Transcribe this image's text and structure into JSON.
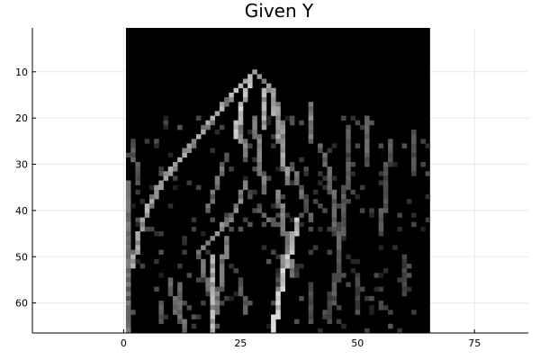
{
  "chart_data": {
    "type": "heatmap",
    "title": "Given Y",
    "xlabel": "",
    "ylabel": "",
    "xlim": [
      -19.5,
      86.5
    ],
    "ylim": [
      66.5,
      0.5
    ],
    "y_reversed": true,
    "colormap": "grayscale",
    "grid": true,
    "legend": "none",
    "xticks": [
      0,
      25,
      50,
      75
    ],
    "yticks": [
      10,
      20,
      30,
      40,
      50,
      60
    ],
    "image_extent": {
      "x": [
        1,
        65
      ],
      "y": [
        1,
        66
      ]
    },
    "image_size": {
      "cols": 65,
      "rows": 66
    },
    "strokes": [
      {
        "pts": [
          [
            28,
            10
          ],
          [
            24,
            14
          ],
          [
            20,
            19
          ],
          [
            16,
            24
          ],
          [
            12,
            29
          ],
          [
            8,
            34
          ],
          [
            5,
            40
          ],
          [
            3,
            46
          ],
          [
            2,
            52
          ]
        ],
        "v": 0.75
      },
      {
        "pts": [
          [
            28,
            10
          ],
          [
            31,
            13
          ],
          [
            33,
            18
          ],
          [
            34,
            24
          ],
          [
            34,
            30
          ]
        ],
        "v": 0.65
      },
      {
        "pts": [
          [
            27,
            12
          ],
          [
            25,
            18
          ],
          [
            24,
            24
          ]
        ],
        "v": 0.85
      },
      {
        "pts": [
          [
            30,
            14
          ],
          [
            30,
            22
          ]
        ],
        "v": 0.8
      },
      {
        "pts": [
          [
            32,
            16
          ],
          [
            33,
            22
          ],
          [
            34,
            28
          ],
          [
            35,
            34
          ]
        ],
        "v": 0.7
      },
      {
        "pts": [
          [
            28,
            20
          ],
          [
            29,
            28
          ],
          [
            30,
            36
          ]
        ],
        "v": 0.55
      },
      {
        "pts": [
          [
            25,
            22
          ],
          [
            26,
            28
          ]
        ],
        "v": 0.6
      },
      {
        "pts": [
          [
            22,
            28
          ],
          [
            20,
            34
          ],
          [
            18,
            40
          ]
        ],
        "v": 0.5
      },
      {
        "pts": [
          [
            26,
            34
          ],
          [
            24,
            40
          ],
          [
            20,
            45
          ],
          [
            16,
            49
          ]
        ],
        "v": 0.6
      },
      {
        "pts": [
          [
            33,
            36
          ],
          [
            34,
            42
          ],
          [
            35,
            48
          ],
          [
            36,
            54
          ]
        ],
        "v": 0.55
      },
      {
        "pts": [
          [
            36,
            30
          ],
          [
            38,
            36
          ],
          [
            40,
            42
          ]
        ],
        "v": 0.5
      },
      {
        "pts": [
          [
            42,
            26
          ],
          [
            44,
            32
          ],
          [
            45,
            40
          ],
          [
            46,
            48
          ]
        ],
        "v": 0.45
      },
      {
        "pts": [
          [
            40,
            17
          ],
          [
            40,
            25
          ]
        ],
        "v": 0.6
      },
      {
        "pts": [
          [
            48,
            22
          ],
          [
            48,
            30
          ],
          [
            47,
            40
          ],
          [
            46,
            50
          ],
          [
            45,
            60
          ]
        ],
        "v": 0.4
      },
      {
        "pts": [
          [
            52,
            20
          ],
          [
            52,
            30
          ]
        ],
        "v": 0.45
      },
      {
        "pts": [
          [
            57,
            25
          ],
          [
            56,
            35
          ],
          [
            55,
            45
          ]
        ],
        "v": 0.4
      },
      {
        "pts": [
          [
            62,
            23
          ],
          [
            62,
            32
          ]
        ],
        "v": 0.4
      },
      {
        "pts": [
          [
            37,
            42
          ],
          [
            36,
            48
          ],
          [
            34,
            54
          ],
          [
            33,
            60
          ],
          [
            32,
            66
          ]
        ],
        "v": 0.9
      },
      {
        "pts": [
          [
            34,
            50
          ],
          [
            34,
            56
          ]
        ],
        "v": 0.6
      },
      {
        "pts": [
          [
            19,
            50
          ],
          [
            19,
            56
          ],
          [
            19,
            62
          ],
          [
            19,
            66
          ]
        ],
        "v": 0.8
      },
      {
        "pts": [
          [
            22,
            46
          ],
          [
            21,
            54
          ],
          [
            20,
            60
          ]
        ],
        "v": 0.55
      },
      {
        "pts": [
          [
            12,
            56
          ],
          [
            12,
            62
          ],
          [
            13,
            66
          ]
        ],
        "v": 0.5
      },
      {
        "pts": [
          [
            16,
            49
          ],
          [
            18,
            56
          ],
          [
            20,
            62
          ]
        ],
        "v": 0.5
      },
      {
        "pts": [
          [
            8,
            60
          ],
          [
            8,
            64
          ]
        ],
        "v": 0.4
      },
      {
        "pts": [
          [
            10,
            55
          ],
          [
            11,
            62
          ]
        ],
        "v": 0.45
      },
      {
        "pts": [
          [
            25,
            55
          ],
          [
            26,
            62
          ]
        ],
        "v": 0.4
      },
      {
        "pts": [
          [
            40,
            56
          ],
          [
            40,
            64
          ]
        ],
        "v": 0.35
      },
      {
        "pts": [
          [
            44,
            58
          ],
          [
            44,
            64
          ]
        ],
        "v": 0.3
      },
      {
        "pts": [
          [
            50,
            54
          ],
          [
            50,
            62
          ]
        ],
        "v": 0.35
      },
      {
        "pts": [
          [
            60,
            50
          ],
          [
            60,
            58
          ]
        ],
        "v": 0.3
      },
      {
        "pts": [
          [
            1,
            34
          ],
          [
            1,
            46
          ],
          [
            1,
            56
          ],
          [
            1,
            66
          ]
        ],
        "v": 0.5
      },
      {
        "pts": [
          [
            2,
            25
          ],
          [
            3,
            34
          ]
        ],
        "v": 0.4
      },
      {
        "pts": [
          [
            29,
            40
          ],
          [
            31,
            42
          ],
          [
            33,
            43
          ]
        ],
        "v": 0.45
      }
    ]
  }
}
